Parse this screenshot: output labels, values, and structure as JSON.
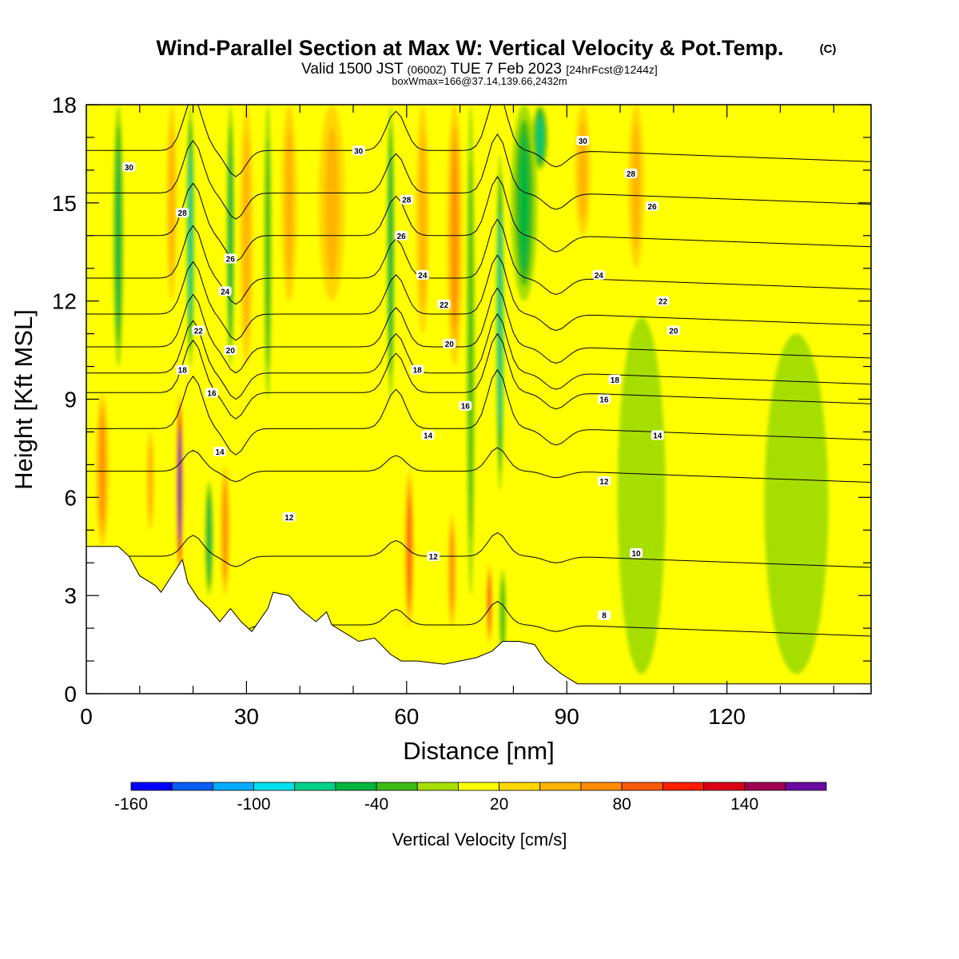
{
  "header": {
    "title": "Wind-Parallel Section at Max W: Vertical Velocity & Pot.Temp.",
    "title_tag": "(C)",
    "valid_pre": "Valid 1500 JST",
    "valid_small": "(0600Z)",
    "valid_mid": "TUE 7 Feb 2023",
    "valid_fcst": "[24hrFcst@1244z]",
    "boxwmax": "boxWmax=166@37.14,139.66,2432m"
  },
  "chart_data": {
    "type": "heatmap",
    "xlabel": "Distance [nm]",
    "ylabel": "Height [Kft MSL]",
    "xlim": [
      0,
      147
    ],
    "ylim": [
      0,
      18
    ],
    "x_ticks": [
      "0",
      "30",
      "60",
      "90",
      "120"
    ],
    "y_ticks": [
      "0",
      "3",
      "6",
      "9",
      "12",
      "15",
      "18"
    ],
    "colorbar": {
      "label": "Vertical Velocity [cm/s]",
      "tick_labels": [
        "-160",
        "-100",
        "-40",
        "20",
        "80",
        "140"
      ],
      "tick_values": [
        -160,
        -100,
        -40,
        20,
        80,
        140
      ],
      "bounds": [
        -160,
        180
      ],
      "bins": [
        {
          "from": -160,
          "to": -140,
          "color": "#0000ff"
        },
        {
          "from": -140,
          "to": -120,
          "color": "#0a5cf5"
        },
        {
          "from": -120,
          "to": -100,
          "color": "#00aaff"
        },
        {
          "from": -100,
          "to": -80,
          "color": "#00e0ee"
        },
        {
          "from": -80,
          "to": -60,
          "color": "#00d28a"
        },
        {
          "from": -60,
          "to": -40,
          "color": "#00b63c"
        },
        {
          "from": -40,
          "to": -20,
          "color": "#3cba14"
        },
        {
          "from": -20,
          "to": 0,
          "color": "#a6de00"
        },
        {
          "from": 0,
          "to": 20,
          "color": "#ffff00"
        },
        {
          "from": 20,
          "to": 40,
          "color": "#ffd700"
        },
        {
          "from": 40,
          "to": 60,
          "color": "#ffb400"
        },
        {
          "from": 60,
          "to": 80,
          "color": "#ff8c00"
        },
        {
          "from": 80,
          "to": 100,
          "color": "#ff5a0a"
        },
        {
          "from": 100,
          "to": 120,
          "color": "#ff1e00"
        },
        {
          "from": 120,
          "to": 140,
          "color": "#dc0014"
        },
        {
          "from": 140,
          "to": 160,
          "color": "#a00050"
        },
        {
          "from": 160,
          "to": 180,
          "color": "#6a0aa0"
        }
      ]
    },
    "vertical_velocity_bands": [
      {
        "x": 3,
        "width": 2.5,
        "bottom": 4.5,
        "top": 9.2,
        "w": 70
      },
      {
        "x": 6,
        "width": 2,
        "bottom": 10,
        "top": 18,
        "w": -45
      },
      {
        "x": 12,
        "width": 1.5,
        "bottom": 5,
        "top": 8,
        "w": 45
      },
      {
        "x": 16,
        "width": 2,
        "bottom": 12,
        "top": 18,
        "w": 40
      },
      {
        "x": 17.5,
        "width": 1.3,
        "bottom": 3.5,
        "top": 9.2,
        "w": 166
      },
      {
        "x": 19.5,
        "width": 1.5,
        "bottom": 10,
        "top": 18,
        "w": -75
      },
      {
        "x": 23,
        "width": 1.6,
        "bottom": 3,
        "top": 6.5,
        "w": -45
      },
      {
        "x": 26,
        "width": 1.8,
        "bottom": 3,
        "top": 7,
        "w": 65
      },
      {
        "x": 27,
        "width": 1.5,
        "bottom": 10,
        "top": 18,
        "w": -45
      },
      {
        "x": 30,
        "width": 2.5,
        "bottom": 10,
        "top": 18,
        "w": 50
      },
      {
        "x": 34,
        "width": 1.5,
        "bottom": 9,
        "top": 18,
        "w": -35
      },
      {
        "x": 38,
        "width": 3,
        "bottom": 12,
        "top": 18,
        "w": 40
      },
      {
        "x": 46,
        "width": 5,
        "bottom": 12,
        "top": 18,
        "w": 40
      },
      {
        "x": 57,
        "width": 1.5,
        "bottom": 9,
        "top": 18,
        "w": -45
      },
      {
        "x": 60.5,
        "width": 1.8,
        "bottom": 2,
        "top": 6.8,
        "w": 85
      },
      {
        "x": 63,
        "width": 2.5,
        "bottom": 11,
        "top": 18,
        "w": 40
      },
      {
        "x": 68.5,
        "width": 1.5,
        "bottom": 2,
        "top": 5.5,
        "w": 60
      },
      {
        "x": 69,
        "width": 3,
        "bottom": 10,
        "top": 18,
        "w": 70
      },
      {
        "x": 72,
        "width": 1.6,
        "bottom": 3,
        "top": 18,
        "w": -40
      },
      {
        "x": 75.5,
        "width": 1,
        "bottom": 1.5,
        "top": 4,
        "w": 85
      },
      {
        "x": 77.5,
        "width": 1.5,
        "bottom": 6.2,
        "top": 16.5,
        "w": -80
      },
      {
        "x": 78,
        "width": 1.3,
        "bottom": 1,
        "top": 3.8,
        "w": -35
      },
      {
        "x": 82,
        "width": 5,
        "bottom": 12,
        "top": 18,
        "w": -45
      },
      {
        "x": 85,
        "width": 3,
        "bottom": 16,
        "top": 18,
        "w": -65
      },
      {
        "x": 93,
        "width": 3,
        "bottom": 14,
        "top": 18,
        "w": 40
      },
      {
        "x": 103,
        "width": 3,
        "bottom": 13,
        "top": 18,
        "w": 50
      },
      {
        "x": 104,
        "width": 9,
        "bottom": 0.6,
        "top": 11.5,
        "w": -15
      },
      {
        "x": 133,
        "width": 12,
        "bottom": 0.6,
        "top": 11,
        "w": -12
      }
    ],
    "terrain_height_kft": [
      [
        0,
        4.5
      ],
      [
        6,
        4.5
      ],
      [
        8,
        4.2
      ],
      [
        10,
        3.6
      ],
      [
        13,
        3.3
      ],
      [
        14,
        3.1
      ],
      [
        16,
        3.6
      ],
      [
        18,
        4.1
      ],
      [
        19,
        3.4
      ],
      [
        21,
        2.9
      ],
      [
        23,
        2.6
      ],
      [
        25,
        2.2
      ],
      [
        27,
        2.6
      ],
      [
        29,
        2.2
      ],
      [
        31,
        1.9
      ],
      [
        34,
        2.6
      ],
      [
        35,
        3.1
      ],
      [
        38,
        3.0
      ],
      [
        40,
        2.6
      ],
      [
        43,
        2.2
      ],
      [
        45,
        2.5
      ],
      [
        46,
        2.1
      ],
      [
        48,
        1.9
      ],
      [
        51,
        1.6
      ],
      [
        54,
        1.7
      ],
      [
        57,
        1.2
      ],
      [
        59,
        1.0
      ],
      [
        62,
        1.0
      ],
      [
        67,
        0.9
      ],
      [
        70,
        1.0
      ],
      [
        73,
        1.1
      ],
      [
        76,
        1.3
      ],
      [
        78,
        1.6
      ],
      [
        81,
        1.6
      ],
      [
        84,
        1.5
      ],
      [
        86,
        1.0
      ],
      [
        89,
        0.6
      ],
      [
        92,
        0.3
      ],
      [
        97,
        0.3
      ],
      [
        103,
        0.3
      ],
      [
        110,
        0.3
      ],
      [
        120,
        0.3
      ],
      [
        147,
        0.3
      ]
    ],
    "potential_temperature_contours": [
      {
        "label": "8",
        "y": 2.1
      },
      {
        "label": "10",
        "y": 4.2
      },
      {
        "label": "12",
        "y": 6.8
      },
      {
        "label": "14",
        "y": 8.1
      },
      {
        "label": "16",
        "y": 9.2
      },
      {
        "label": "18",
        "y": 9.8
      },
      {
        "label": "20",
        "y": 10.6
      },
      {
        "label": "22",
        "y": 11.6
      },
      {
        "label": "24",
        "y": 12.7
      },
      {
        "label": "26",
        "y": 14.0
      },
      {
        "label": "28",
        "y": 15.3
      },
      {
        "label": "30",
        "y": 16.6
      }
    ],
    "contour_labels": [
      {
        "label": "30",
        "x": 8,
        "y": 16.1
      },
      {
        "label": "28",
        "x": 18,
        "y": 14.7
      },
      {
        "label": "26",
        "x": 27,
        "y": 13.3
      },
      {
        "label": "24",
        "x": 26,
        "y": 12.3
      },
      {
        "label": "22",
        "x": 21,
        "y": 11.1
      },
      {
        "label": "20",
        "x": 27,
        "y": 10.5
      },
      {
        "label": "18",
        "x": 18,
        "y": 9.9
      },
      {
        "label": "16",
        "x": 23.5,
        "y": 9.2
      },
      {
        "label": "14",
        "x": 25,
        "y": 7.4
      },
      {
        "label": "12",
        "x": 38,
        "y": 5.4
      },
      {
        "label": "30",
        "x": 51,
        "y": 16.6
      },
      {
        "label": "28",
        "x": 60,
        "y": 15.1
      },
      {
        "label": "26",
        "x": 59,
        "y": 14.0
      },
      {
        "label": "24",
        "x": 63,
        "y": 12.8
      },
      {
        "label": "22",
        "x": 67,
        "y": 11.9
      },
      {
        "label": "20",
        "x": 68,
        "y": 10.7
      },
      {
        "label": "18",
        "x": 62,
        "y": 9.9
      },
      {
        "label": "16",
        "x": 71,
        "y": 8.8
      },
      {
        "label": "14",
        "x": 64,
        "y": 7.9
      },
      {
        "label": "12",
        "x": 65,
        "y": 4.2
      },
      {
        "label": "30",
        "x": 93,
        "y": 16.9
      },
      {
        "label": "28",
        "x": 102,
        "y": 15.9
      },
      {
        "label": "26",
        "x": 106,
        "y": 14.9
      },
      {
        "label": "24",
        "x": 96,
        "y": 12.8
      },
      {
        "label": "22",
        "x": 108,
        "y": 12.0
      },
      {
        "label": "20",
        "x": 110,
        "y": 11.1
      },
      {
        "label": "18",
        "x": 99,
        "y": 9.6
      },
      {
        "label": "16",
        "x": 97,
        "y": 9.0
      },
      {
        "label": "14",
        "x": 107,
        "y": 7.9
      },
      {
        "label": "12",
        "x": 97,
        "y": 6.5
      },
      {
        "label": "10",
        "x": 103,
        "y": 4.3
      },
      {
        "label": "8",
        "x": 97,
        "y": 2.4
      }
    ]
  }
}
